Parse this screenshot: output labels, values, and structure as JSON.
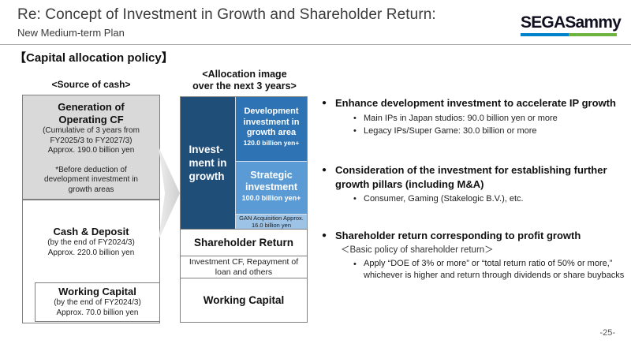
{
  "slide": {
    "title": "Re: Concept of Investment in Growth and Shareholder Return:",
    "subtitle": "New Medium-term Plan",
    "section_heading": "【Capital allocation policy】",
    "page_number": "-25-"
  },
  "logo": {
    "text": "SEGASammy"
  },
  "source_of_cash": {
    "label": "<Source of cash>",
    "operating_cf": {
      "title_line1": "Generation of",
      "title_line2": "Operating CF",
      "detail1": "(Cumulative of 3 years from",
      "detail2": "FY2025/3 to FY2027/3)",
      "detail3": "Approx. 190.0 billion yen",
      "note1": "*Before deduction of",
      "note2": "development investment in",
      "note3": "growth areas"
    },
    "cash_deposit": {
      "title": "Cash & Deposit",
      "detail1": "(by the end of FY2024/3)",
      "detail2": "Approx. 220.0 billion yen"
    },
    "working_capital": {
      "title": "Working Capital",
      "detail1": "(by the end of FY2024/3)",
      "detail2": "Approx. 70.0 billion yen"
    }
  },
  "allocation": {
    "label_line1": "<Allocation image",
    "label_line2": "over the next 3 years>",
    "growth_column": {
      "line1": "Invest-",
      "line2": "ment in",
      "line3": "growth"
    },
    "development": {
      "line1": "Development",
      "line2": "investment in",
      "line3": "growth area",
      "amount": "120.0 billion yen+"
    },
    "strategic": {
      "line1": "Strategic",
      "line2": "investment",
      "amount": "100.0 billion yen+"
    },
    "gan": {
      "line1": "GAN Acquisition Approx.",
      "line2": "16.0 billion yen"
    },
    "shareholder_return": "Shareholder Return",
    "investment_cf": {
      "line1": "Investment CF, Repayment of",
      "line2": "loan and others"
    },
    "working_capital": "Working Capital"
  },
  "bullets": [
    {
      "label": "Enhance development investment to accelerate IP growth",
      "subs": [
        "Main IPs in Japan studios: 90.0 billion yen or more",
        "Legacy IPs/Super Game: 30.0 billion or more"
      ]
    },
    {
      "label": "Consideration of the investment for establishing further growth pillars (including M&A)",
      "subs": [
        "Consumer, Gaming (Stakelogic B.V.), etc."
      ]
    },
    {
      "label": "Shareholder return corresponding to profit growth",
      "note": "＜Basic policy of shareholder return＞",
      "subs": [
        "Apply “DOE of 3% or more” or “total return ratio of 50% or more,” whichever is higher and return through dividends or share buybacks"
      ]
    }
  ],
  "colors": {
    "navy": "#1F4E79",
    "medium_blue": "#2E74B5",
    "light_blue": "#5B9BD5",
    "pale_blue": "#9DC3E6",
    "gray_box": "#D9D9D9",
    "logo_blue": "#0081C9",
    "logo_green": "#6CB33F"
  }
}
